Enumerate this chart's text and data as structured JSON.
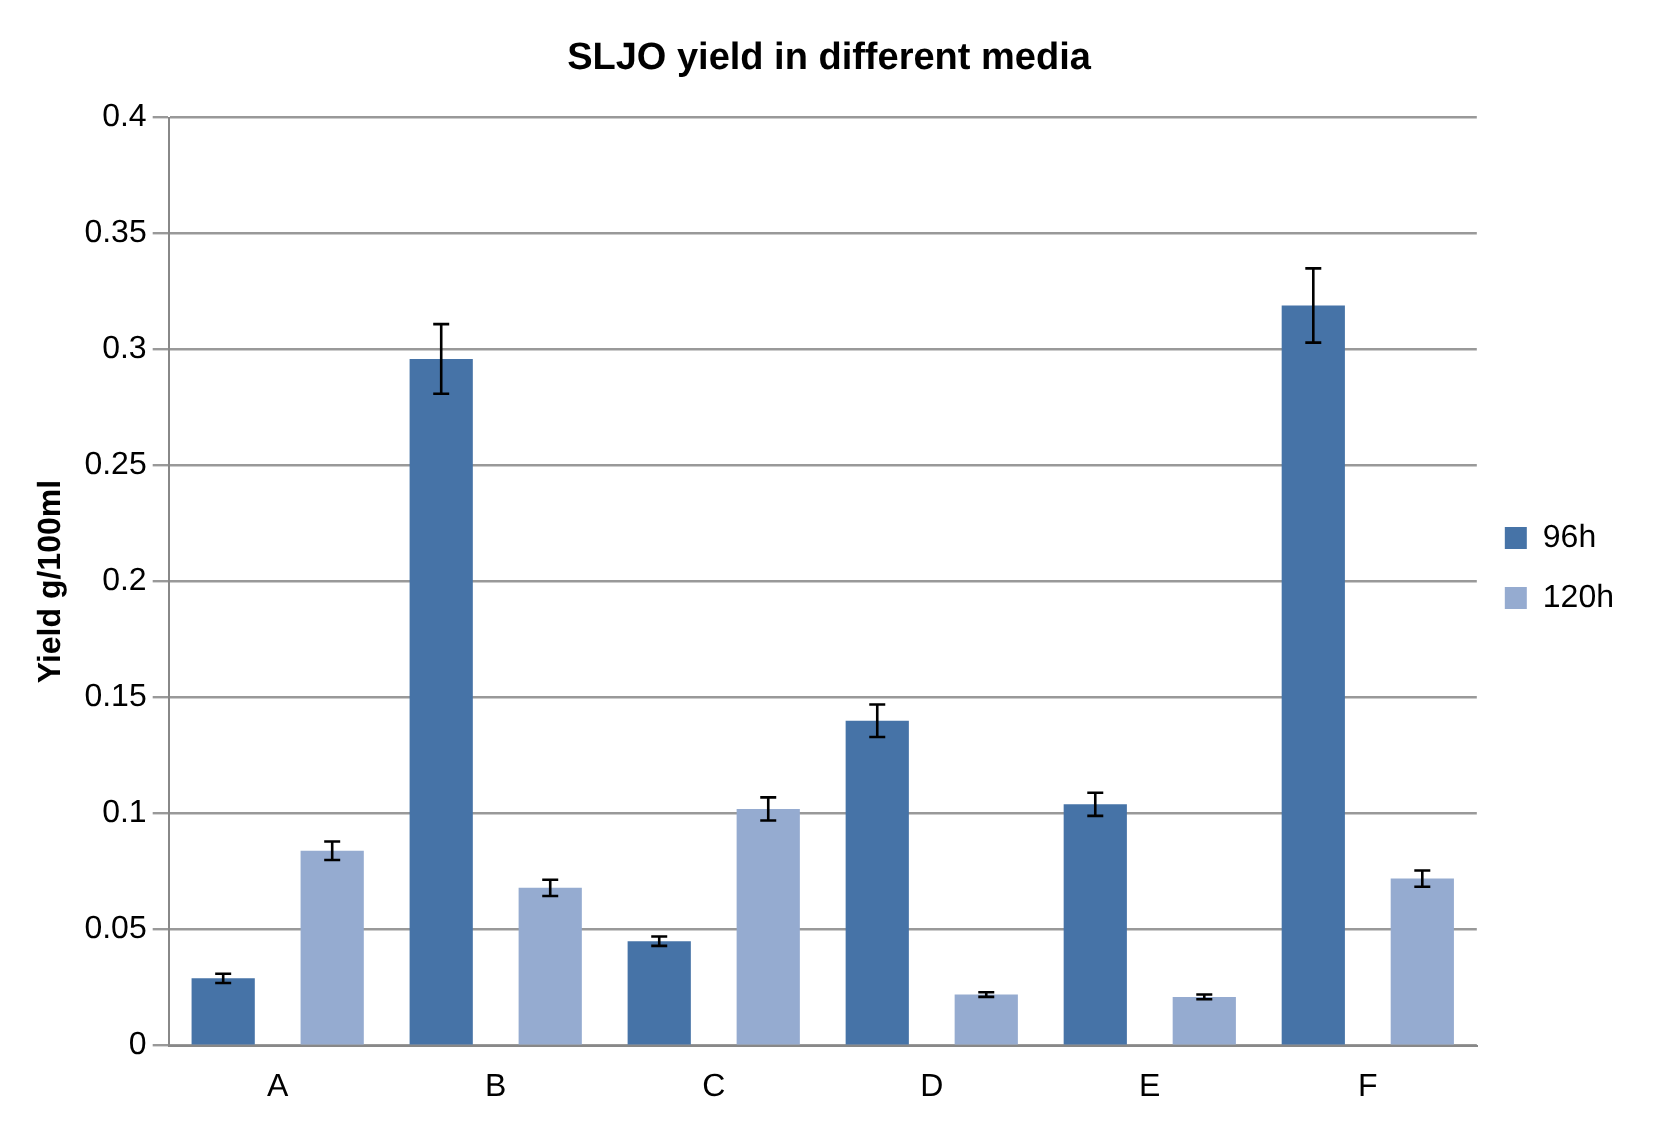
{
  "chart_data": {
    "type": "bar",
    "title": "SLJO yield in different media",
    "ylabel": "Yield g/100ml",
    "categories": [
      "A",
      "B",
      "C",
      "D",
      "E",
      "F"
    ],
    "series": [
      {
        "name": "96h",
        "color": "#4673a7",
        "values": [
          0.029,
          0.296,
          0.045,
          0.14,
          0.104,
          0.319
        ],
        "errors": [
          0.002,
          0.015,
          0.002,
          0.007,
          0.005,
          0.016
        ]
      },
      {
        "name": "120h",
        "color": "#95abd0",
        "values": [
          0.084,
          0.068,
          0.102,
          0.022,
          0.021,
          0.072
        ],
        "errors": [
          0.004,
          0.0035,
          0.005,
          0.001,
          0.001,
          0.0035
        ]
      }
    ],
    "ylim": [
      0,
      0.4
    ],
    "yticks": [
      0,
      0.05,
      0.1,
      0.15,
      0.2,
      0.25,
      0.3,
      0.35,
      0.4
    ],
    "grid": "y",
    "legend": "right"
  }
}
